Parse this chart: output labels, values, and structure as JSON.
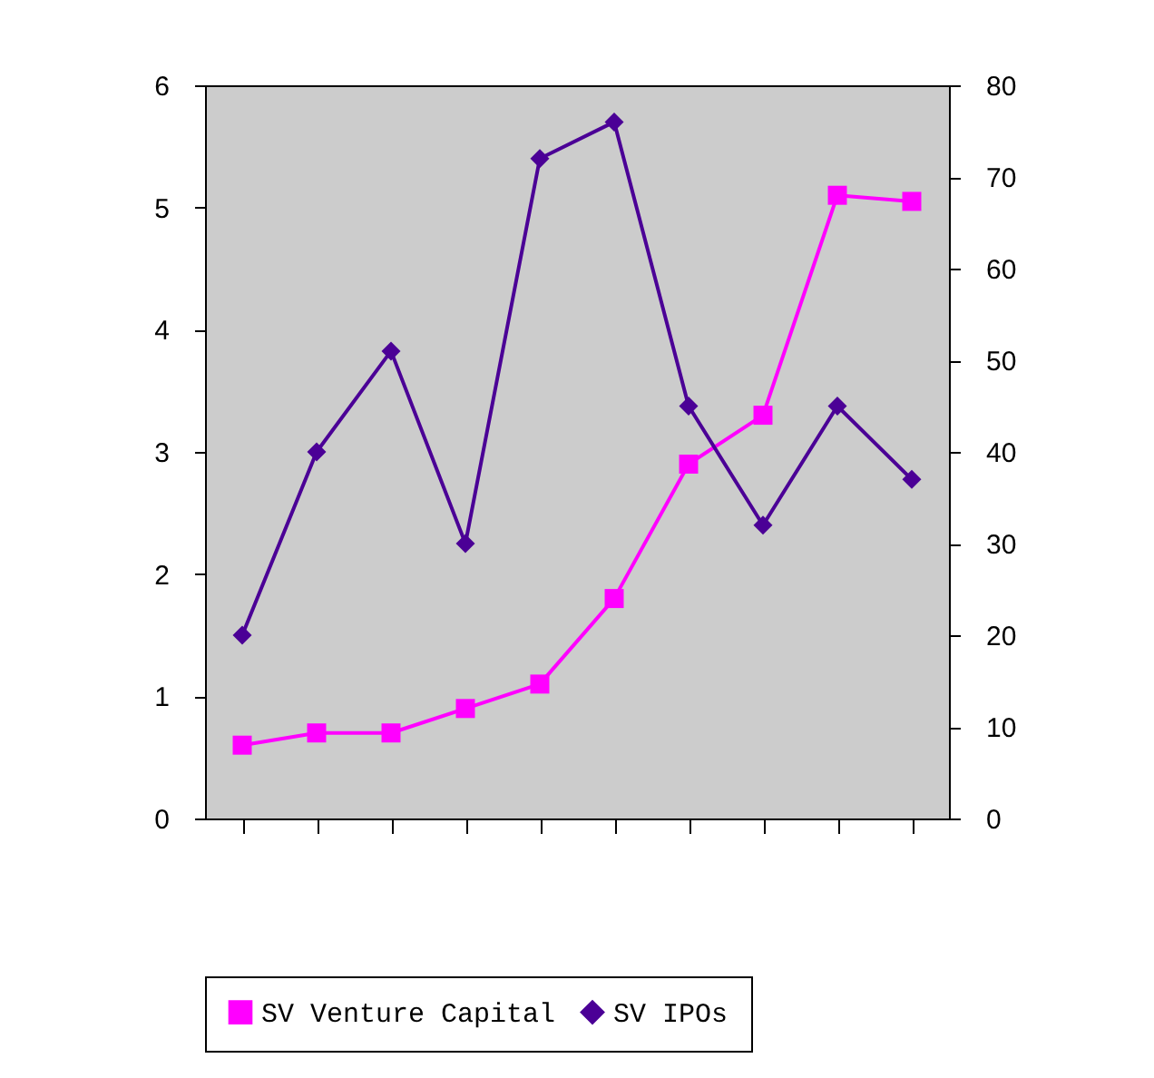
{
  "chart_data": {
    "type": "line",
    "categories": [
      null,
      null,
      null,
      null,
      null,
      null,
      null,
      null,
      null,
      null
    ],
    "series": [
      {
        "name": "SV Venture Capital",
        "color": "#ff00ff",
        "marker": "square",
        "values": [
          0.6,
          0.7,
          0.7,
          0.9,
          1.1,
          1.8,
          2.9,
          3.3,
          5.1,
          5.05
        ]
      },
      {
        "name": "SV IPOs",
        "color": "#4b0096",
        "marker": "diamond",
        "axis": "y2",
        "values": [
          20,
          40,
          51,
          30,
          72,
          76,
          45,
          32,
          45,
          37
        ]
      }
    ],
    "ylim": [
      0,
      6
    ],
    "yticks": [
      0,
      1,
      2,
      3,
      4,
      5,
      6
    ],
    "y2lim": [
      0,
      80
    ],
    "y2ticks": [
      0,
      10,
      20,
      30,
      40,
      50,
      60,
      70,
      80
    ],
    "legend": "bottom"
  }
}
